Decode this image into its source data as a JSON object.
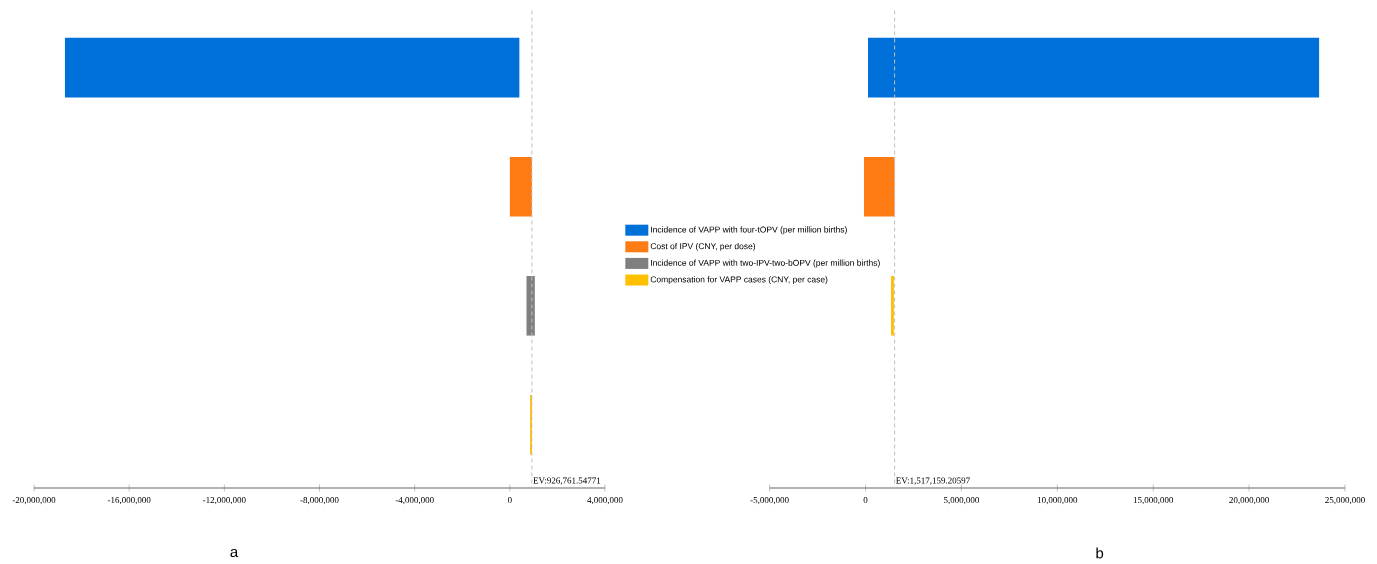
{
  "chart_data": [
    {
      "type": "bar",
      "orientation": "horizontal",
      "categories": [
        null,
        null,
        null,
        null
      ],
      "legend": "right",
      "grid": false,
      "series": [
        {
          "name": "Incidence of VAPP with four-tOPV (per million births)",
          "color": "#0070d9",
          "values": [
            19100000,
            null,
            null,
            null
          ],
          "base": [
            -18700000,
            null,
            null,
            null
          ]
        },
        {
          "name": "Cost of IPV (CNY, per dose)",
          "color": "#ff7b13",
          "values": [
            null,
            930000,
            null,
            null
          ],
          "base": [
            null,
            0,
            null,
            null
          ]
        },
        {
          "name": "Incidence of VAPP with two-IPV-two-bOPV (per million births)",
          "color": "#7f7f7f",
          "values": [
            null,
            null,
            350000,
            null
          ],
          "base": [
            null,
            null,
            700000,
            null
          ]
        },
        {
          "name": "Compensation for VAPP cases (CNY, per case)",
          "color": "#ffc000",
          "values": [
            null,
            null,
            null,
            80000
          ],
          "base": [
            null,
            null,
            null,
            850000
          ]
        }
      ],
      "xlim": [
        -20000000,
        4000000
      ],
      "xticks": [
        {
          "value": -20000000,
          "label": "-20,000,000"
        },
        {
          "value": -16000000,
          "label": "-16,000,000"
        },
        {
          "value": -12000000,
          "label": "-12,000,000"
        },
        {
          "value": -8000000,
          "label": "-8,000,000"
        },
        {
          "value": -4000000,
          "label": "-4,000,000"
        },
        0,
        {
          "value": 4000000,
          "label": "4,000,000"
        }
      ],
      "ref_lines": [
        {
          "axis": "x",
          "value": 926761.54771,
          "label": "EV:926,761.54771",
          "color": "#c0c0c0",
          "line_style": "dashed"
        }
      ],
      "annotations": [
        "a"
      ]
    },
    {
      "type": "bar",
      "orientation": "horizontal",
      "categories": [
        null,
        null,
        null,
        null
      ],
      "grid": false,
      "series": [
        {
          "color": "#0070d9",
          "values": [
            23520000,
            null,
            null,
            null
          ],
          "base": [
            130000,
            null,
            null,
            null
          ]
        },
        {
          "color": "#ff7b13",
          "values": [
            null,
            1600000,
            null,
            null
          ],
          "base": [
            null,
            -80000,
            null,
            null
          ]
        },
        {
          "color": "#ffc000",
          "values": [
            null,
            null,
            150000,
            null
          ],
          "base": [
            null,
            null,
            1330000,
            null
          ]
        }
      ],
      "xlim": [
        -5000000,
        25000000
      ],
      "xticks": [
        {
          "value": -5000000,
          "label": "-5,000,000"
        },
        0,
        {
          "value": 5000000,
          "label": "5,000,000"
        },
        {
          "value": 10000000,
          "label": "10,000,000"
        },
        {
          "value": 15000000,
          "label": "15,000,000"
        },
        {
          "value": 20000000,
          "label": "20,000,000"
        },
        {
          "value": 25000000,
          "label": "25,000,000"
        }
      ],
      "ref_lines": [
        {
          "axis": "x",
          "value": 1517159.20597,
          "label": "EV:1,517,159.20597",
          "color": "#c0c0c0",
          "line_style": "dashed"
        }
      ],
      "annotations": [
        "b"
      ]
    }
  ]
}
